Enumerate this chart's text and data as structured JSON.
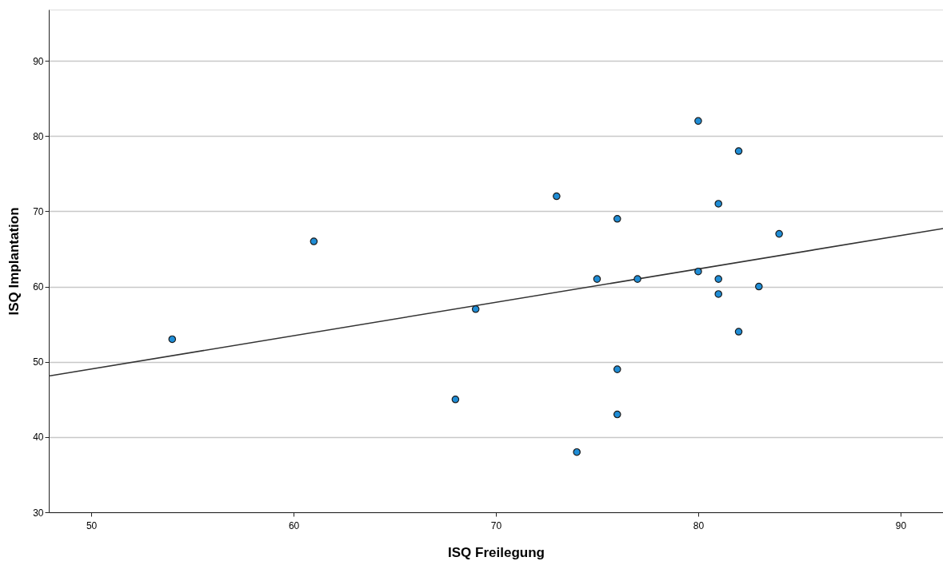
{
  "chart_data": {
    "type": "scatter",
    "xlabel": "ISQ Freilegung",
    "ylabel": "ISQ Implantation",
    "xlim": [
      47.9,
      92.1
    ],
    "ylim": [
      30,
      96.8
    ],
    "xticks": [
      50,
      60,
      70,
      80,
      90
    ],
    "yticks": [
      30,
      40,
      50,
      60,
      70,
      80,
      90
    ],
    "grid": "y",
    "marker": "circle",
    "series": [
      {
        "color": "#1f8dd6",
        "x": [
          54,
          61,
          68,
          69,
          73,
          74,
          75,
          76,
          76,
          76,
          77,
          80,
          80,
          81,
          81,
          81,
          82,
          82,
          83,
          84
        ],
        "values": [
          53,
          66,
          45,
          57,
          72,
          38,
          61,
          69,
          49,
          43,
          61,
          82,
          62,
          71,
          61,
          59,
          78,
          54,
          60,
          67
        ]
      },
      {
        "type": "line",
        "color": "#333333",
        "marker": "none",
        "line_style": "solid",
        "x": [
          47.9,
          92.1
        ],
        "values": [
          48.1,
          67.7
        ]
      }
    ]
  }
}
